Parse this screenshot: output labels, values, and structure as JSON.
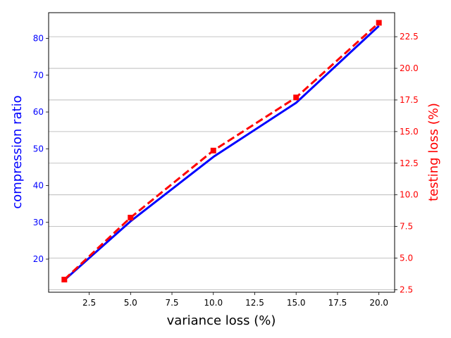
{
  "chart_data": {
    "type": "line",
    "title": "",
    "xlabel": "variance loss (%)",
    "ylabel_left": "compression ratio",
    "ylabel_right": "testing loss (%)",
    "xlim": [
      0.05,
      20.95
    ],
    "ylim_left": [
      11,
      87
    ],
    "ylim_right": [
      2.3,
      24.4
    ],
    "xticks": [
      2.5,
      5.0,
      7.5,
      10.0,
      12.5,
      15.0,
      17.5,
      20.0
    ],
    "xtick_labels": [
      "2.5",
      "5.0",
      "7.5",
      "10.0",
      "12.5",
      "15.0",
      "17.5",
      "20.0"
    ],
    "yticks_left": [
      20,
      30,
      40,
      50,
      60,
      70,
      80
    ],
    "ytick_labels_left": [
      "20",
      "30",
      "40",
      "50",
      "60",
      "70",
      "80"
    ],
    "yticks_right": [
      2.5,
      5.0,
      7.5,
      10.0,
      12.5,
      15.0,
      17.5,
      20.0,
      22.5
    ],
    "ytick_labels_right": [
      "2.5",
      "5.0",
      "7.5",
      "10.0",
      "12.5",
      "15.0",
      "17.5",
      "20.0",
      "22.5"
    ],
    "grid": "horizontal, right axis",
    "series": [
      {
        "axis": "left",
        "color": "#0000ff",
        "style": "solid",
        "x": [
          1,
          5,
          10,
          15,
          20
        ],
        "values": [
          14.3,
          30.3,
          47.8,
          62.5,
          83.4
        ]
      },
      {
        "axis": "right",
        "color": "#ff0000",
        "style": "dashed",
        "marker": "square",
        "x": [
          1,
          5,
          10,
          15,
          20
        ],
        "values": [
          3.3,
          8.2,
          13.5,
          17.7,
          23.6
        ]
      }
    ]
  }
}
